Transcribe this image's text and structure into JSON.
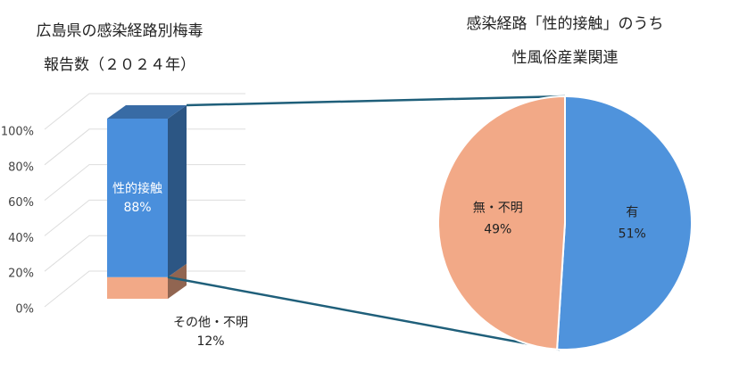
{
  "chart_data": [
    {
      "type": "bar",
      "stacked": true,
      "title": [
        "広島県の感染経路別梅毒",
        "報告数（２０２４年）"
      ],
      "categories": [
        null
      ],
      "series": [
        {
          "name": "その他・不明",
          "color": "#f2a987",
          "values": [
            12
          ],
          "value_labels": [
            "12%"
          ]
        },
        {
          "name": "性的接触",
          "color": "#4a8fdc",
          "values": [
            88
          ],
          "value_labels": [
            "88%"
          ]
        }
      ],
      "ylim": [
        0,
        100
      ],
      "yticks": [
        {
          "value": 0,
          "label": "0%"
        },
        {
          "value": 20,
          "label": "20%"
        },
        {
          "value": 40,
          "label": "40%"
        },
        {
          "value": 60,
          "label": "60%"
        },
        {
          "value": 80,
          "label": "80%"
        },
        {
          "value": 100,
          "label": "100%"
        }
      ],
      "grid": true
    },
    {
      "type": "pie",
      "title": [
        "感染経路「性的接触」のうち",
        "性風俗産業関連"
      ],
      "categories": [
        "有",
        "無・不明"
      ],
      "values": [
        51,
        49
      ],
      "value_labels": [
        "51%",
        "49%"
      ],
      "colors": [
        "#4f93dc",
        "#f2a987"
      ]
    }
  ]
}
